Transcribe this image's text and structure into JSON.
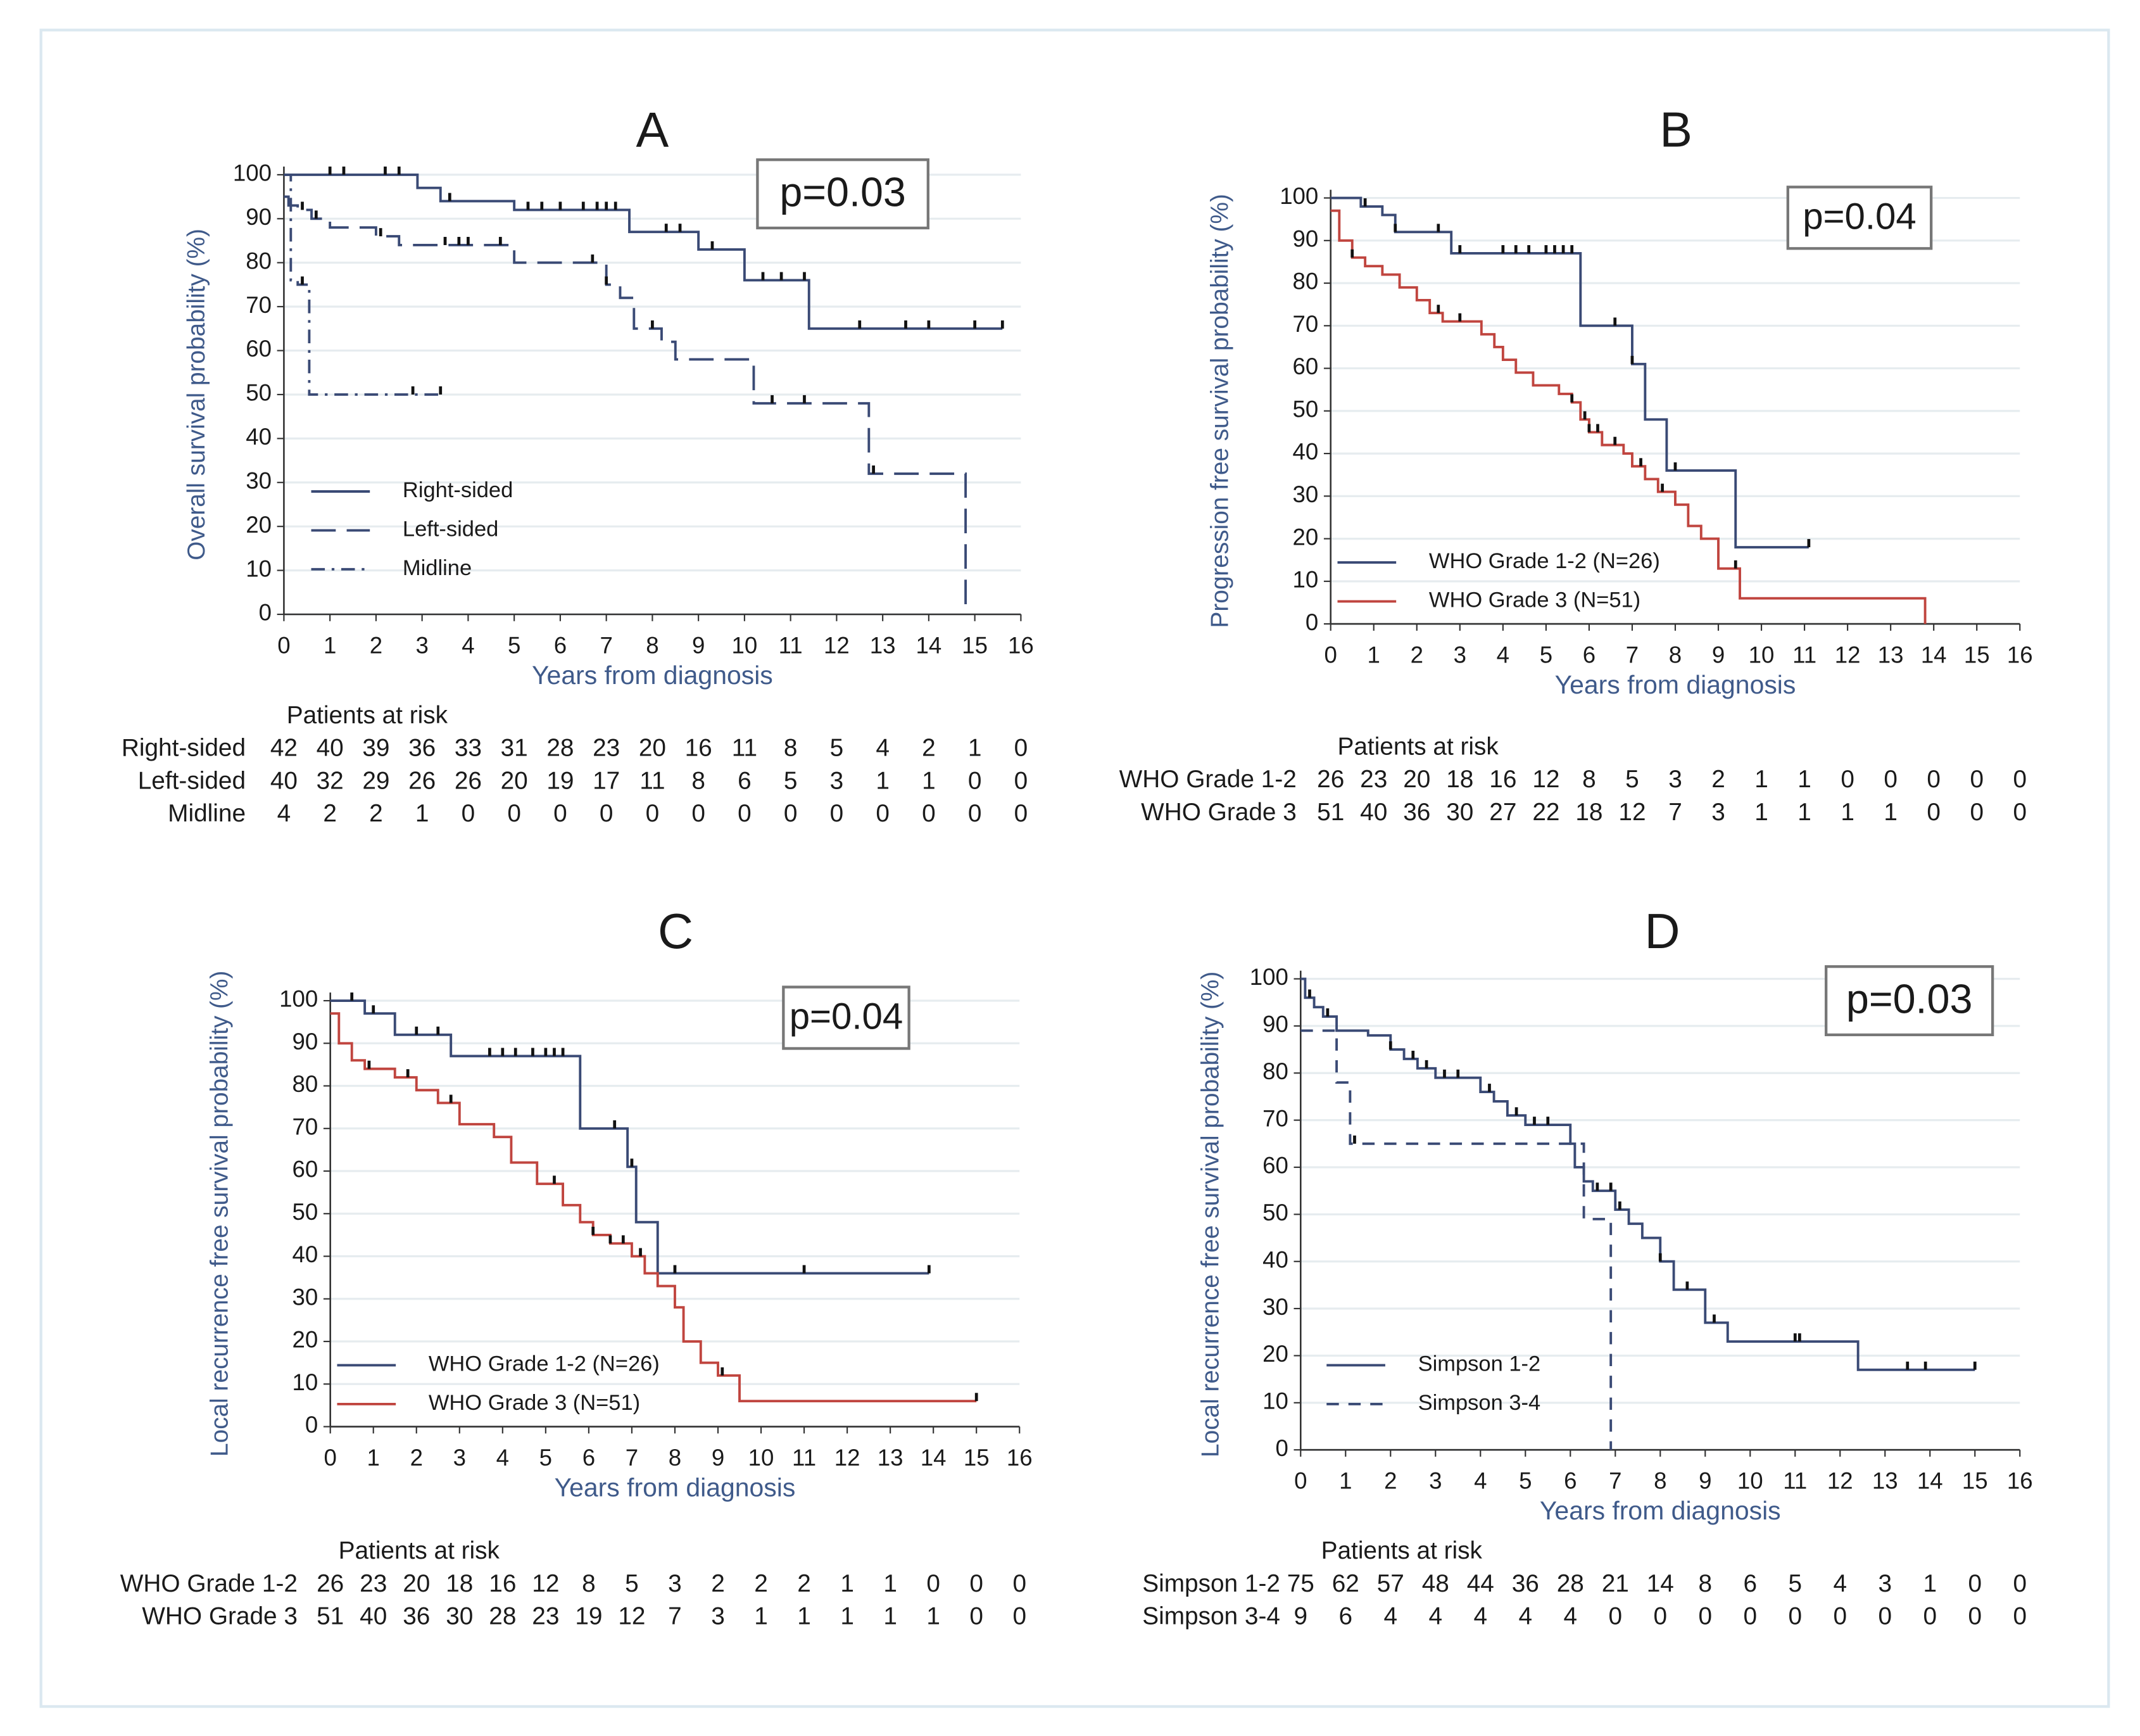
{
  "chart_data": [
    {
      "type": "step",
      "title": "A",
      "annotation": "p=0.03",
      "xlabel": "Years from diagnosis",
      "ylabel": "Overall survival probability (%)",
      "xlim": [
        0,
        16
      ],
      "xticks": [
        0,
        1,
        2,
        3,
        4,
        5,
        6,
        7,
        8,
        9,
        10,
        11,
        12,
        13,
        14,
        15,
        16
      ],
      "ylim": [
        0,
        100
      ],
      "yticks": [
        0,
        10,
        20,
        30,
        40,
        50,
        60,
        70,
        80,
        90,
        100
      ],
      "grid": true,
      "series": [
        {
          "name": "Right-sided",
          "color": "#3a4a75",
          "dash": "solid",
          "x": [
            0,
            2.9,
            3.4,
            5,
            7.5,
            9,
            10,
            11.4,
            15.6
          ],
          "values": [
            100,
            97,
            94,
            92,
            87,
            83,
            76,
            65,
            65
          ],
          "censor_x": [
            1,
            1.3,
            2.2,
            2.5,
            3.6,
            5.3,
            5.6,
            6,
            6.5,
            6.8,
            7,
            7.2,
            8.3,
            8.6,
            9.3,
            10.4,
            10.8,
            11.3,
            12.5,
            13.5,
            14,
            15,
            15.6
          ]
        },
        {
          "name": "Left-sided",
          "color": "#3a4a75",
          "dash": "long-dash",
          "x": [
            0,
            0.1,
            0.3,
            0.6,
            1,
            2,
            2.5,
            3.5,
            5,
            7,
            7.3,
            7.6,
            8.2,
            8.5,
            10.2,
            12.7,
            14.8
          ],
          "values": [
            95,
            93,
            92,
            90,
            88,
            86,
            84,
            84,
            80,
            75,
            72,
            65,
            62,
            58,
            48,
            32,
            0
          ],
          "censor_x": [
            0.4,
            0.7,
            2.1,
            3.5,
            3.8,
            4,
            4.7,
            6.7,
            7,
            8,
            10.6,
            11.3,
            12.8
          ]
        },
        {
          "name": "Midline",
          "color": "#3a4a75",
          "dash": "dash-dot",
          "x": [
            0,
            0.15,
            0.3,
            0.55,
            3.4
          ],
          "values": [
            100,
            76,
            75,
            50,
            50
          ],
          "censor_x": [
            0.4,
            2.8,
            3.4
          ]
        }
      ],
      "risk_table": {
        "title": "Patients at risk",
        "rows": [
          {
            "name": "Right-sided",
            "values": [
              42,
              40,
              39,
              36,
              33,
              31,
              28,
              23,
              20,
              16,
              11,
              8,
              5,
              4,
              2,
              1,
              0
            ]
          },
          {
            "name": "Left-sided",
            "values": [
              40,
              32,
              29,
              26,
              26,
              20,
              19,
              17,
              11,
              8,
              6,
              5,
              3,
              1,
              1,
              0,
              0
            ]
          },
          {
            "name": "Midline",
            "values": [
              4,
              2,
              2,
              1,
              0,
              0,
              0,
              0,
              0,
              0,
              0,
              0,
              0,
              0,
              0,
              0,
              0
            ]
          }
        ]
      }
    },
    {
      "type": "step",
      "title": "B",
      "annotation": "p=0.04",
      "xlabel": "Years from diagnosis",
      "ylabel": "Progression free survival probability (%)",
      "xlim": [
        0,
        16
      ],
      "xticks": [
        0,
        1,
        2,
        3,
        4,
        5,
        6,
        7,
        8,
        9,
        10,
        11,
        12,
        13,
        14,
        15,
        16
      ],
      "ylim": [
        0,
        100
      ],
      "yticks": [
        0,
        10,
        20,
        30,
        40,
        50,
        60,
        70,
        80,
        90,
        100
      ],
      "grid": true,
      "series": [
        {
          "name": "WHO Grade 1-2 (N=26)",
          "color": "#3a4a75",
          "dash": "solid",
          "x": [
            0,
            0.7,
            1.2,
            1.5,
            2.8,
            5.8,
            7,
            7.3,
            7.8,
            9.4,
            11.1
          ],
          "values": [
            100,
            98,
            96,
            92,
            87,
            70,
            61,
            48,
            36,
            18,
            18
          ],
          "censor_x": [
            0.8,
            1.5,
            2.5,
            3,
            4,
            4.3,
            4.6,
            5,
            5.2,
            5.4,
            5.6,
            6.6,
            7,
            8,
            11.1
          ]
        },
        {
          "name": "WHO Grade 3 (N=51)",
          "color": "#c0453f",
          "dash": "solid",
          "x": [
            0,
            0.2,
            0.5,
            0.8,
            1.2,
            1.6,
            2,
            2.3,
            2.6,
            3.5,
            3.8,
            4,
            4.3,
            4.7,
            5.3,
            5.6,
            5.8,
            6,
            6.3,
            6.8,
            7,
            7.3,
            7.6,
            8,
            8.3,
            8.6,
            9,
            9.5,
            13.8
          ],
          "values": [
            97,
            90,
            86,
            84,
            82,
            79,
            76,
            73,
            71,
            68,
            65,
            62,
            59,
            56,
            54,
            52,
            48,
            45,
            42,
            40,
            37,
            34,
            31,
            28,
            23,
            20,
            13,
            6,
            0
          ],
          "censor_x": [
            0.5,
            2.5,
            3,
            5.6,
            5.9,
            6,
            6.2,
            6.6,
            7.2,
            7.7,
            9.4
          ]
        }
      ],
      "risk_table": {
        "title": "Patients at risk",
        "rows": [
          {
            "name": "WHO Grade 1-2",
            "values": [
              26,
              23,
              20,
              18,
              16,
              12,
              8,
              5,
              3,
              2,
              1,
              1,
              0,
              0,
              0,
              0,
              0
            ]
          },
          {
            "name": "WHO Grade 3",
            "values": [
              51,
              40,
              36,
              30,
              27,
              22,
              18,
              12,
              7,
              3,
              1,
              1,
              1,
              1,
              0,
              0,
              0
            ]
          }
        ]
      }
    },
    {
      "type": "step",
      "title": "C",
      "annotation": "p=0.04",
      "xlabel": "Years from diagnosis",
      "ylabel": "Local recurrence free survival probability (%)",
      "xlim": [
        0,
        16
      ],
      "xticks": [
        0,
        1,
        2,
        3,
        4,
        5,
        6,
        7,
        8,
        9,
        10,
        11,
        12,
        13,
        14,
        15,
        16
      ],
      "ylim": [
        0,
        100
      ],
      "yticks": [
        0,
        10,
        20,
        30,
        40,
        50,
        60,
        70,
        80,
        90,
        100
      ],
      "grid": true,
      "series": [
        {
          "name": "WHO Grade 1-2 (N=26)",
          "color": "#3a4a75",
          "dash": "solid",
          "x": [
            0,
            0.8,
            1.5,
            2.8,
            5.8,
            6.9,
            7.1,
            7.6,
            13.9
          ],
          "values": [
            100,
            97,
            92,
            87,
            70,
            61,
            48,
            36,
            36
          ],
          "censor_x": [
            0.5,
            1,
            2,
            2.5,
            3.7,
            4,
            4.3,
            4.7,
            5,
            5.2,
            5.4,
            6.6,
            7,
            8,
            11,
            13.9
          ]
        },
        {
          "name": "WHO Grade 3 (N=51)",
          "color": "#c0453f",
          "dash": "solid",
          "x": [
            0,
            0.2,
            0.5,
            0.8,
            1.5,
            2,
            2.5,
            3,
            3.8,
            4.2,
            4.8,
            5.4,
            5.8,
            6.1,
            6.5,
            7,
            7.3,
            7.6,
            8,
            8.2,
            8.6,
            9,
            9.5,
            15
          ],
          "values": [
            97,
            90,
            86,
            84,
            82,
            79,
            76,
            71,
            68,
            62,
            57,
            52,
            48,
            45,
            43,
            40,
            36,
            33,
            28,
            20,
            15,
            12,
            6,
            6
          ],
          "censor_x": [
            0.9,
            1.8,
            2.8,
            5.2,
            6.1,
            6.5,
            6.8,
            7.2,
            9.1,
            15
          ]
        }
      ],
      "risk_table": {
        "title": "Patients at risk",
        "rows": [
          {
            "name": "WHO Grade 1-2",
            "values": [
              26,
              23,
              20,
              18,
              16,
              12,
              8,
              5,
              3,
              2,
              2,
              2,
              1,
              1,
              0,
              0,
              0
            ]
          },
          {
            "name": "WHO Grade 3",
            "values": [
              51,
              40,
              36,
              30,
              28,
              23,
              19,
              12,
              7,
              3,
              1,
              1,
              1,
              1,
              1,
              0,
              0
            ]
          }
        ]
      }
    },
    {
      "type": "step",
      "title": "D",
      "annotation": "p=0.03",
      "xlabel": "Years from diagnosis",
      "ylabel": "Local recurrence free survival probability (%)",
      "xlim": [
        0,
        16
      ],
      "xticks": [
        0,
        1,
        2,
        3,
        4,
        5,
        6,
        7,
        8,
        9,
        10,
        11,
        12,
        13,
        14,
        15,
        16
      ],
      "ylim": [
        0,
        100
      ],
      "yticks": [
        0,
        10,
        20,
        30,
        40,
        50,
        60,
        70,
        80,
        90,
        100
      ],
      "grid": true,
      "series": [
        {
          "name": "Simpson 1-2",
          "color": "#3a4a75",
          "dash": "solid",
          "x": [
            0,
            0.1,
            0.3,
            0.5,
            0.8,
            1.5,
            2,
            2.3,
            2.6,
            3,
            4,
            4.3,
            4.6,
            5,
            6,
            6.1,
            6.3,
            6.5,
            7,
            7.3,
            7.6,
            8,
            8.3,
            9,
            9.5,
            12.4,
            15
          ],
          "values": [
            100,
            96,
            94,
            92,
            89,
            88,
            85,
            83,
            81,
            79,
            76,
            74,
            71,
            69,
            65,
            60,
            57,
            55,
            51,
            48,
            45,
            40,
            34,
            27,
            23,
            17,
            17
          ],
          "censor_x": [
            0.2,
            0.6,
            2,
            2.5,
            2.8,
            3.2,
            3.5,
            4.2,
            4.8,
            5.2,
            5.5,
            6.6,
            6.9,
            7.1,
            8,
            8.6,
            9.2,
            11,
            11.1,
            13.5,
            13.9,
            15
          ]
        },
        {
          "name": "Simpson 3-4",
          "color": "#3a4a75",
          "dash": "dash",
          "x": [
            0,
            0.8,
            1.1,
            6.3,
            6.9
          ],
          "values": [
            89,
            78,
            65,
            49,
            0
          ],
          "censor_x": [
            1.2
          ]
        }
      ],
      "risk_table": {
        "title": "Patients at risk",
        "rows": [
          {
            "name": "Simpson 1-2",
            "values": [
              75,
              62,
              57,
              48,
              44,
              36,
              28,
              21,
              14,
              8,
              6,
              5,
              4,
              3,
              1,
              0,
              0
            ]
          },
          {
            "name": "Simpson 3-4",
            "values": [
              9,
              6,
              4,
              4,
              4,
              4,
              4,
              0,
              0,
              0,
              0,
              0,
              0,
              0,
              0,
              0,
              0
            ]
          }
        ]
      }
    }
  ]
}
